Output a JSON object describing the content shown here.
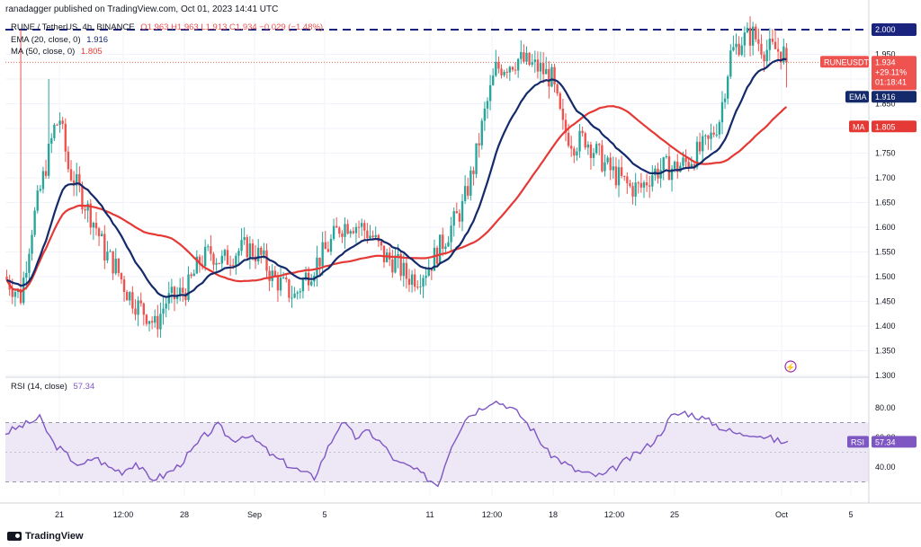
{
  "header": {
    "publisher": "ranadagger published on TradingView.com, Oct 01, 2023 14:41 UTC"
  },
  "legend": {
    "symbol": "RUNE / TetherUS, 4h, BINANCE",
    "ohlc": "O1.963 H1.963 L1.913 C1.934 −0.029 (−1.48%)",
    "ema": "EMA (20, close, 0)",
    "ema_value": "1.916",
    "ma": "MA (50, close, 0)",
    "ma_value": "1.805",
    "rsi": "RSI (14, close)",
    "rsi_value": "57.34"
  },
  "price_axis": {
    "currency": "USDT",
    "ticks": [
      "1.300",
      "1.350",
      "1.400",
      "1.450",
      "1.500",
      "1.550",
      "1.600",
      "1.650",
      "1.700",
      "1.750",
      "1.800",
      "1.850",
      "1.900",
      "1.950",
      "2.000"
    ],
    "labels": {
      "resistance": "2.000",
      "symbol_tag": "RUNEUSDT",
      "last_price": "1.934",
      "change_pct": "+29.11%",
      "countdown": "01:18:41",
      "ema_tag": "EMA",
      "ema_value": "1.916",
      "ma_tag": "MA",
      "ma_value": "1.805",
      "rsi_tag": "RSI",
      "rsi_value": "57.34"
    }
  },
  "rsi_axis": {
    "ticks": [
      "40.00",
      "60.00",
      "80.00"
    ]
  },
  "time_axis": {
    "labels": [
      "21",
      "12:00",
      "28",
      "Sep",
      "5",
      "11",
      "12:00",
      "18",
      "12:00",
      "25",
      "Oct",
      "5"
    ]
  },
  "footer": {
    "brand": "TradingView"
  },
  "colors": {
    "up": "#26a69a",
    "down": "#ef5350",
    "ema": "#142a6b",
    "ma": "#e53935",
    "rsi": "#7e57c2",
    "rsi_band": "#ede7f6",
    "resistance": "#1a237e"
  },
  "chart_data": {
    "type": "candlestick",
    "title": "RUNE / TetherUS, 4h, BINANCE",
    "ylim": [
      1.3,
      2.02
    ],
    "resistance_level": 2.0,
    "price_anchors": [
      [
        0,
        1.5
      ],
      [
        6,
        1.46
      ],
      [
        10,
        1.6
      ],
      [
        14,
        1.7
      ],
      [
        18,
        1.8
      ],
      [
        20,
        1.82
      ],
      [
        23,
        1.72
      ],
      [
        28,
        1.66
      ],
      [
        33,
        1.6
      ],
      [
        36,
        1.55
      ],
      [
        40,
        1.52
      ],
      [
        44,
        1.47
      ],
      [
        48,
        1.44
      ],
      [
        52,
        1.42
      ],
      [
        54,
        1.4
      ],
      [
        58,
        1.45
      ],
      [
        62,
        1.46
      ],
      [
        66,
        1.48
      ],
      [
        70,
        1.53
      ],
      [
        74,
        1.55
      ],
      [
        78,
        1.53
      ],
      [
        83,
        1.55
      ],
      [
        87,
        1.56
      ],
      [
        92,
        1.54
      ],
      [
        96,
        1.5
      ],
      [
        100,
        1.48
      ],
      [
        104,
        1.46
      ],
      [
        108,
        1.5
      ],
      [
        112,
        1.53
      ],
      [
        116,
        1.56
      ],
      [
        120,
        1.6
      ],
      [
        124,
        1.61
      ],
      [
        128,
        1.6
      ],
      [
        132,
        1.58
      ],
      [
        136,
        1.54
      ],
      [
        140,
        1.53
      ],
      [
        144,
        1.5
      ],
      [
        148,
        1.5
      ],
      [
        152,
        1.52
      ],
      [
        156,
        1.56
      ],
      [
        160,
        1.6
      ],
      [
        164,
        1.64
      ],
      [
        168,
        1.72
      ],
      [
        172,
        1.83
      ],
      [
        176,
        1.92
      ],
      [
        180,
        1.93
      ],
      [
        184,
        1.94
      ],
      [
        188,
        1.93
      ],
      [
        192,
        1.92
      ],
      [
        196,
        1.9
      ],
      [
        200,
        1.8
      ],
      [
        204,
        1.77
      ],
      [
        208,
        1.78
      ],
      [
        212,
        1.75
      ],
      [
        216,
        1.72
      ],
      [
        220,
        1.7
      ],
      [
        224,
        1.68
      ],
      [
        228,
        1.68
      ],
      [
        232,
        1.71
      ],
      [
        236,
        1.72
      ],
      [
        240,
        1.72
      ],
      [
        244,
        1.73
      ],
      [
        248,
        1.75
      ],
      [
        252,
        1.77
      ],
      [
        256,
        1.82
      ],
      [
        260,
        1.95
      ],
      [
        264,
        1.98
      ],
      [
        268,
        1.99
      ],
      [
        272,
        1.96
      ],
      [
        276,
        1.96
      ],
      [
        280,
        1.95
      ]
    ],
    "rsi_anchors": [
      [
        0,
        63
      ],
      [
        5,
        68
      ],
      [
        10,
        73
      ],
      [
        14,
        56
      ],
      [
        18,
        48
      ],
      [
        22,
        40
      ],
      [
        26,
        47
      ],
      [
        30,
        40
      ],
      [
        34,
        37
      ],
      [
        38,
        43
      ],
      [
        42,
        32
      ],
      [
        46,
        34
      ],
      [
        50,
        40
      ],
      [
        54,
        50
      ],
      [
        58,
        61
      ],
      [
        62,
        68
      ],
      [
        66,
        58
      ],
      [
        70,
        62
      ],
      [
        74,
        56
      ],
      [
        78,
        47
      ],
      [
        82,
        42
      ],
      [
        86,
        37
      ],
      [
        90,
        33
      ],
      [
        94,
        53
      ],
      [
        98,
        71
      ],
      [
        102,
        60
      ],
      [
        106,
        64
      ],
      [
        110,
        55
      ],
      [
        114,
        43
      ],
      [
        118,
        40
      ],
      [
        122,
        34
      ],
      [
        126,
        28
      ],
      [
        130,
        55
      ],
      [
        134,
        73
      ],
      [
        138,
        79
      ],
      [
        142,
        85
      ],
      [
        146,
        82
      ],
      [
        150,
        75
      ],
      [
        154,
        64
      ],
      [
        158,
        50
      ],
      [
        162,
        44
      ],
      [
        166,
        38
      ],
      [
        170,
        35
      ],
      [
        174,
        34
      ],
      [
        178,
        40
      ],
      [
        182,
        46
      ],
      [
        186,
        52
      ],
      [
        190,
        60
      ],
      [
        194,
        74
      ],
      [
        198,
        77
      ],
      [
        202,
        74
      ],
      [
        206,
        70
      ],
      [
        210,
        65
      ],
      [
        214,
        62
      ],
      [
        218,
        63
      ],
      [
        222,
        60
      ],
      [
        226,
        57
      ],
      [
        228,
        57.34
      ]
    ],
    "ema_period": 20,
    "ma_period": 50,
    "rsi_period": 14,
    "last": {
      "open": 1.963,
      "high": 1.963,
      "low": 1.913,
      "close": 1.934,
      "change": -0.029,
      "change_pct": -1.48
    }
  }
}
